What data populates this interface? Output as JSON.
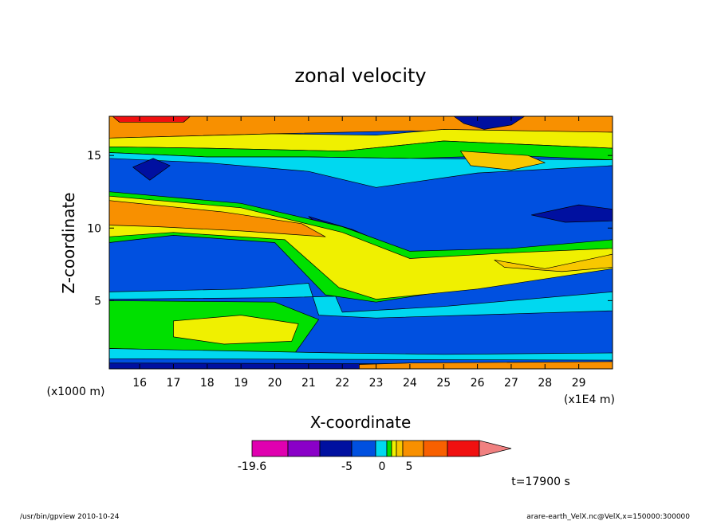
{
  "chart_data": {
    "type": "heatmap",
    "title": "zonal velocity",
    "xlabel": "X-coordinate",
    "ylabel": "Z-coordinate",
    "x_unit_left": "(x1000 m)",
    "x_unit_right": "(x1E4 m)",
    "xlim": [
      15.1,
      30.0
    ],
    "ylim": [
      0.3,
      17.7
    ],
    "x_ticks": [
      "16",
      "17",
      "18",
      "19",
      "20",
      "21",
      "22",
      "23",
      "24",
      "25",
      "26",
      "27",
      "28",
      "29"
    ],
    "y_ticks": [
      {
        "value": 5,
        "label": "5"
      },
      {
        "value": 10,
        "label": "10"
      },
      {
        "value": 15,
        "label": "15"
      }
    ],
    "colorbar": {
      "colors": [
        "#e000b0",
        "#8a00c8",
        "#0010a0",
        "#0050e0",
        "#00d8f0",
        "#00e000",
        "#f0f000",
        "#f8c800",
        "#f89000",
        "#f86000",
        "#f01010",
        "#f08080"
      ],
      "labels": [
        {
          "text": "-19.6",
          "pos": 0
        },
        {
          "text": "-5",
          "pos": 3
        },
        {
          "text": "0",
          "pos": 4
        },
        {
          "text": "5",
          "pos": 5
        }
      ]
    },
    "bands": [
      {
        "name": "surface-orange",
        "color": "#f89000",
        "z_range": [
          15.9,
          17.7
        ]
      },
      {
        "name": "upper-yellow",
        "color": "#f0f000",
        "z_range": [
          15.2,
          16.2
        ]
      },
      {
        "name": "upper-blue-layer",
        "color": "#0050e0",
        "z_range": [
          12.2,
          15.4
        ]
      },
      {
        "name": "mid-orange-west",
        "color": "#f89000",
        "z_range": [
          9.2,
          12.2
        ]
      },
      {
        "name": "mid-yellow-east",
        "color": "#f0f000",
        "z_range": [
          5.0,
          8.5
        ]
      },
      {
        "name": "lower-blue-layer",
        "color": "#0050e0",
        "z_range": [
          5.2,
          8.6
        ]
      },
      {
        "name": "lower-yellow-west",
        "color": "#f0f000",
        "z_range": [
          2.0,
          4.0
        ]
      },
      {
        "name": "deep-blue-east",
        "color": "#0050e0",
        "z_range": [
          1.2,
          4.6
        ]
      },
      {
        "name": "bottom-orange",
        "color": "#f89000",
        "z_range": [
          0.3,
          0.8
        ]
      }
    ]
  },
  "annotations": {
    "time_label": "t=17900 s",
    "footer_left": "/usr/bin/gpview   2010-10-24",
    "footer_right": "arare-earth_VelX.nc@VelX,x=150000:300000"
  }
}
